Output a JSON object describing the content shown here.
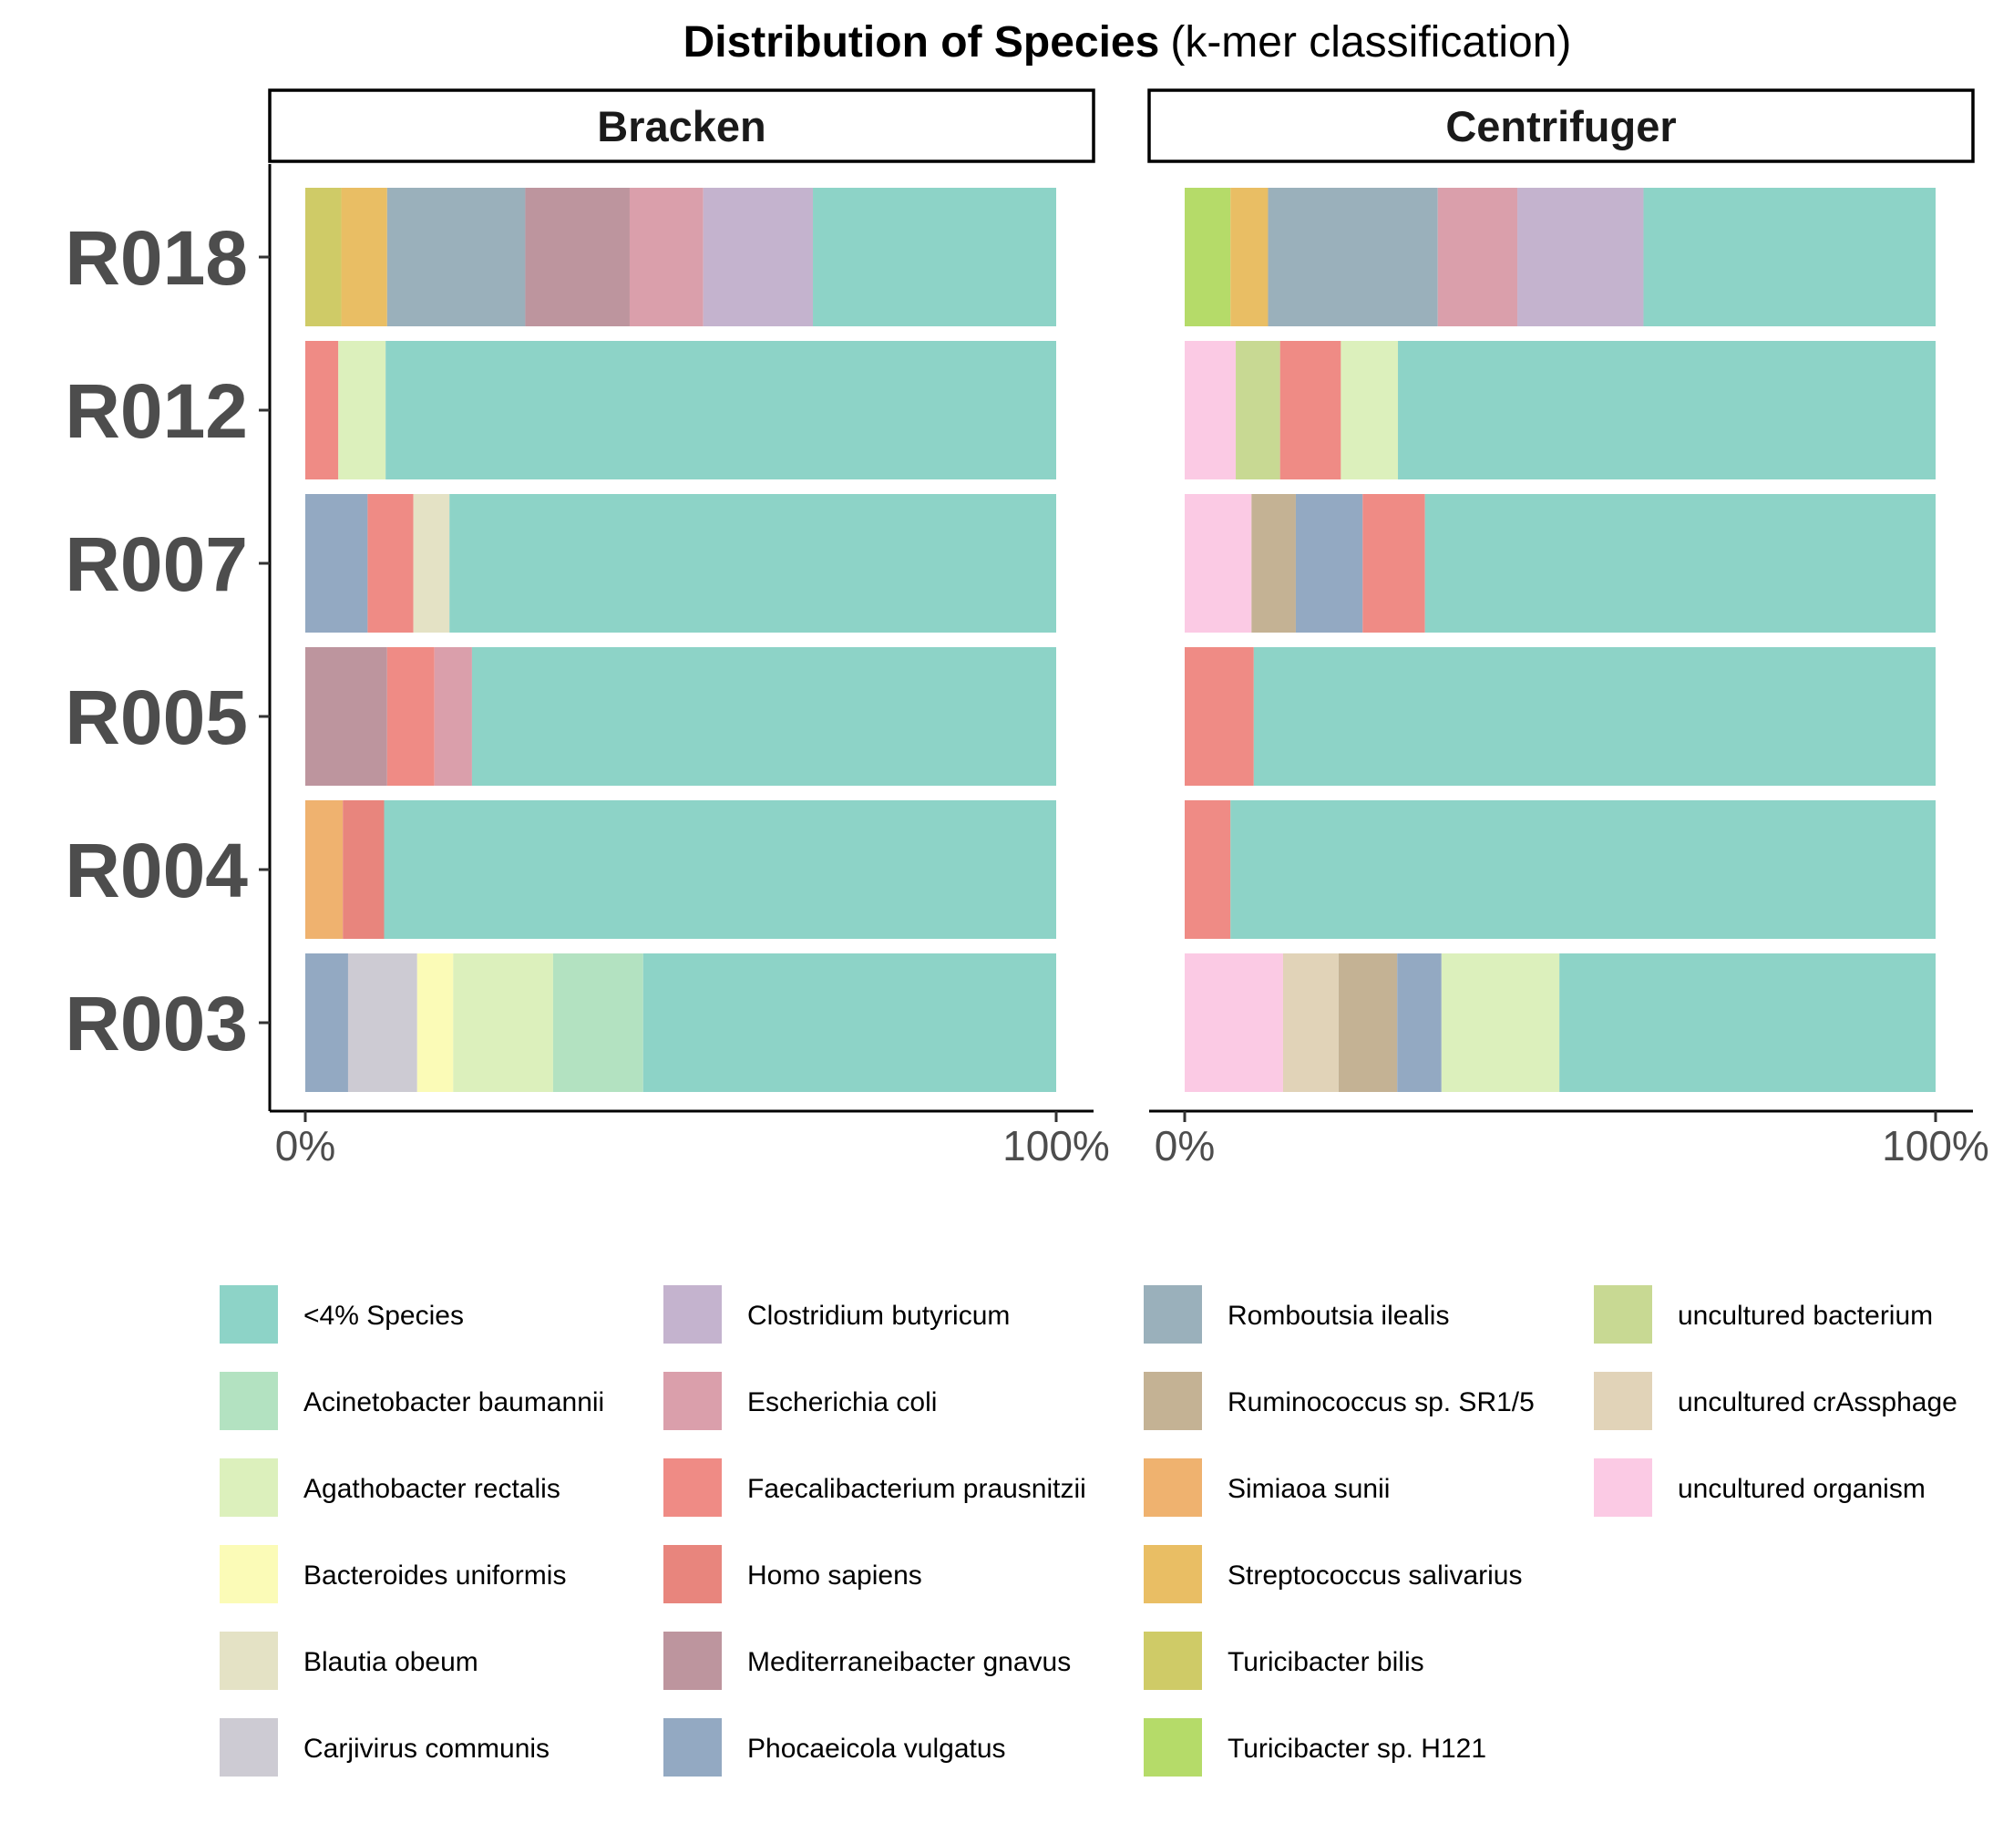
{
  "chart_data": {
    "type": "bar",
    "orientation": "horizontal",
    "stacked": "percent",
    "title": "Distribution of Species",
    "subtitle": "(k-mer classification)",
    "xlabel": "",
    "ylabel": "",
    "xlim": [
      0,
      100
    ],
    "x_ticks": [
      "0%",
      "100%"
    ],
    "categories": [
      "R018",
      "R012",
      "R007",
      "R005",
      "R004",
      "R003"
    ],
    "facets": [
      "Bracken",
      "Centrifuger"
    ],
    "legend_placement": "bottom",
    "legend": [
      {
        "name": "<4% Species",
        "color": "#8dd3c7"
      },
      {
        "name": "Acinetobacter baumannii",
        "color": "#b3e2c1"
      },
      {
        "name": "Agathobacter rectalis",
        "color": "#dcf0bc"
      },
      {
        "name": "Bacteroides uniformis",
        "color": "#fbfbb7"
      },
      {
        "name": "Blautia obeum",
        "color": "#e4e2c5"
      },
      {
        "name": "Carjivirus communis",
        "color": "#cdcbd3"
      },
      {
        "name": "Clostridium butyricum",
        "color": "#c4b3ce"
      },
      {
        "name": "Escherichia coli",
        "color": "#da9fab"
      },
      {
        "name": "Faecalibacterium prausnitzii",
        "color": "#ef8b85"
      },
      {
        "name": "Homo sapiens",
        "color": "#e8857d"
      },
      {
        "name": "Mediterraneibacter gnavus",
        "color": "#bd959e"
      },
      {
        "name": "Phocaeicola vulgatus",
        "color": "#93a9c2"
      },
      {
        "name": "Romboutsia ilealis",
        "color": "#9ab0bb"
      },
      {
        "name": "Ruminococcus sp. SR1/5",
        "color": "#c4b294"
      },
      {
        "name": "Simiaoa sunii",
        "color": "#efb26f"
      },
      {
        "name": "Streptococcus salivarius",
        "color": "#e9be64"
      },
      {
        "name": "Turicibacter bilis",
        "color": "#cfcb67"
      },
      {
        "name": "Turicibacter sp. H121",
        "color": "#b5db69"
      },
      {
        "name": "uncultured bacterium",
        "color": "#c8d993"
      },
      {
        "name": "uncultured crAssphage",
        "color": "#e1d3b8"
      },
      {
        "name": "uncultured organism",
        "color": "#fbcae4"
      }
    ],
    "panels": [
      {
        "facet": "Bracken",
        "rows": [
          {
            "sample": "R018",
            "segments": [
              {
                "species": "Turicibacter bilis",
                "value": 4.8
              },
              {
                "species": "Streptococcus salivarius",
                "value": 6.1
              },
              {
                "species": "Romboutsia ilealis",
                "value": 18.4
              },
              {
                "species": "Mediterraneibacter gnavus",
                "value": 13.9
              },
              {
                "species": "Escherichia coli",
                "value": 9.8
              },
              {
                "species": "Clostridium butyricum",
                "value": 14.6
              },
              {
                "species": "<4% Species",
                "value": 32.4
              }
            ]
          },
          {
            "sample": "R012",
            "segments": [
              {
                "species": "Faecalibacterium prausnitzii",
                "value": 4.4
              },
              {
                "species": "Agathobacter rectalis",
                "value": 6.3
              },
              {
                "species": "<4% Species",
                "value": 89.3
              }
            ]
          },
          {
            "sample": "R007",
            "segments": [
              {
                "species": "Phocaeicola vulgatus",
                "value": 8.3
              },
              {
                "species": "Faecalibacterium prausnitzii",
                "value": 6.1
              },
              {
                "species": "Blautia obeum",
                "value": 4.8
              },
              {
                "species": "<4% Species",
                "value": 80.8
              }
            ]
          },
          {
            "sample": "R005",
            "segments": [
              {
                "species": "Mediterraneibacter gnavus",
                "value": 10.9
              },
              {
                "species": "Faecalibacterium prausnitzii",
                "value": 6.3
              },
              {
                "species": "Escherichia coli",
                "value": 5.0
              },
              {
                "species": "<4% Species",
                "value": 77.8
              }
            ]
          },
          {
            "sample": "R004",
            "segments": [
              {
                "species": "Simiaoa sunii",
                "value": 5.0
              },
              {
                "species": "Homo sapiens",
                "value": 5.5
              },
              {
                "species": "<4% Species",
                "value": 89.5
              }
            ]
          },
          {
            "sample": "R003",
            "segments": [
              {
                "species": "Phocaeicola vulgatus",
                "value": 5.7
              },
              {
                "species": "Carjivirus communis",
                "value": 9.2
              },
              {
                "species": "Bacteroides uniformis",
                "value": 4.8
              },
              {
                "species": "Agathobacter rectalis",
                "value": 13.3
              },
              {
                "species": "Acinetobacter baumannii",
                "value": 12.0
              },
              {
                "species": "<4% Species",
                "value": 55.0
              }
            ]
          }
        ]
      },
      {
        "facet": "Centrifuger",
        "rows": [
          {
            "sample": "R018",
            "segments": [
              {
                "species": "Turicibacter sp. H121",
                "value": 6.1
              },
              {
                "species": "Streptococcus salivarius",
                "value": 5.0
              },
              {
                "species": "Romboutsia ilealis",
                "value": 22.6
              },
              {
                "species": "Escherichia coli",
                "value": 10.6
              },
              {
                "species": "Clostridium butyricum",
                "value": 16.8
              },
              {
                "species": "<4% Species",
                "value": 38.9
              }
            ]
          },
          {
            "sample": "R012",
            "segments": [
              {
                "species": "uncultured organism",
                "value": 6.8
              },
              {
                "species": "uncultured bacterium",
                "value": 5.9
              },
              {
                "species": "Faecalibacterium prausnitzii",
                "value": 8.1
              },
              {
                "species": "Agathobacter rectalis",
                "value": 7.6
              },
              {
                "species": "<4% Species",
                "value": 71.6
              }
            ]
          },
          {
            "sample": "R007",
            "segments": [
              {
                "species": "uncultured organism",
                "value": 8.9
              },
              {
                "species": "Ruminococcus sp. SR1/5",
                "value": 5.9
              },
              {
                "species": "Phocaeicola vulgatus",
                "value": 8.9
              },
              {
                "species": "Faecalibacterium prausnitzii",
                "value": 8.3
              },
              {
                "species": "<4% Species",
                "value": 68.0
              }
            ]
          },
          {
            "sample": "R005",
            "segments": [
              {
                "species": "Faecalibacterium prausnitzii",
                "value": 9.2
              },
              {
                "species": "<4% Species",
                "value": 90.8
              }
            ]
          },
          {
            "sample": "R004",
            "segments": [
              {
                "species": "Faecalibacterium prausnitzii",
                "value": 6.1
              },
              {
                "species": "<4% Species",
                "value": 93.9
              }
            ]
          },
          {
            "sample": "R003",
            "segments": [
              {
                "species": "uncultured organism",
                "value": 13.1
              },
              {
                "species": "uncultured crAssphage",
                "value": 7.4
              },
              {
                "species": "Ruminococcus sp. SR1/5",
                "value": 7.8
              },
              {
                "species": "Phocaeicola vulgatus",
                "value": 5.9
              },
              {
                "species": "Agathobacter rectalis",
                "value": 15.7
              },
              {
                "species": "<4% Species",
                "value": 50.1
              }
            ]
          }
        ]
      }
    ]
  }
}
